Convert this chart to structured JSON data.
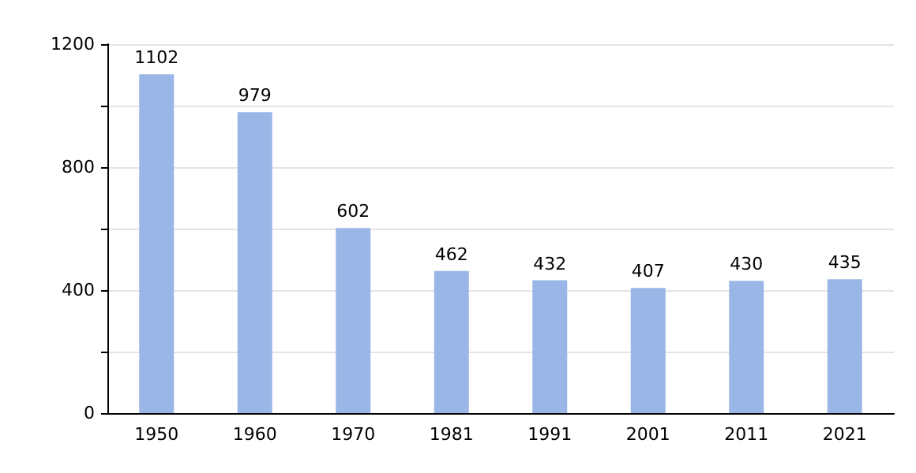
{
  "chart_data": {
    "type": "bar",
    "categories": [
      "1950",
      "1960",
      "1970",
      "1981",
      "1991",
      "2001",
      "2011",
      "2021"
    ],
    "values": [
      1102,
      979,
      602,
      462,
      432,
      407,
      430,
      435
    ],
    "color": "#9ab6e6",
    "ylim": [
      0,
      1200
    ],
    "yticks": [
      0,
      {
        "value": 200,
        "label": null
      },
      400,
      {
        "value": 600,
        "label": null
      },
      800,
      {
        "value": 1000,
        "label": null
      },
      1200
    ],
    "grid": "y",
    "data_labels": true
  }
}
